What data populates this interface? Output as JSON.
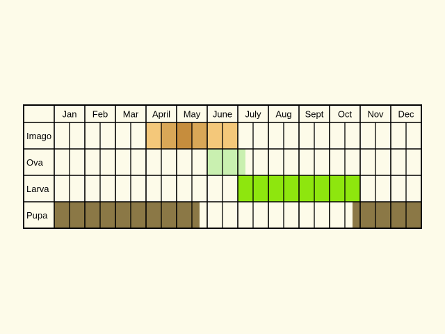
{
  "chart_data": {
    "type": "table",
    "months": [
      "Jan",
      "Feb",
      "Mar",
      "April",
      "May",
      "June",
      "July",
      "Aug",
      "Sept",
      "Oct",
      "Nov",
      "Dec"
    ],
    "subdivisions_per_month": 2,
    "stages": [
      {
        "label": "Imago",
        "periods": [
          {
            "start_month": 4.0,
            "end_month": 4.5,
            "color": "#f4c87a"
          },
          {
            "start_month": 4.5,
            "end_month": 5.0,
            "color": "#d9a757"
          },
          {
            "start_month": 5.0,
            "end_month": 5.5,
            "color": "#c68d3d"
          },
          {
            "start_month": 5.5,
            "end_month": 6.0,
            "color": "#d9a757"
          },
          {
            "start_month": 6.0,
            "end_month": 7.0,
            "color": "#f4c87a"
          }
        ]
      },
      {
        "label": "Ova",
        "periods": [
          {
            "start_month": 6.0,
            "end_month": 7.25,
            "color": "#c9f0b0"
          }
        ]
      },
      {
        "label": "Larva",
        "periods": [
          {
            "start_month": 7.0,
            "end_month": 11.0,
            "color": "#8ee60e"
          }
        ]
      },
      {
        "label": "Pupa",
        "periods": [
          {
            "start_month": 1.0,
            "end_month": 5.75,
            "color": "#8b7846"
          },
          {
            "start_month": 10.75,
            "end_month": 13.0,
            "color": "#8b7846"
          }
        ]
      }
    ],
    "colors": {
      "background": "#fdfbe9",
      "grid": "#000000",
      "label_text": "#000000"
    }
  }
}
